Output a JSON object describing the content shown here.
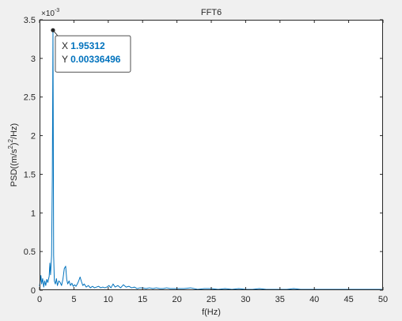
{
  "chart_data": {
    "type": "line",
    "title": "FFT6",
    "xlabel": "f(Hz)",
    "ylabel": "PSD((m/s²)²/Hz)",
    "ylabel_parts": {
      "prefix": "PSD((m/s",
      "sup1": "2",
      "mid": ")",
      "sup2": "2",
      "suffix": "/Hz)"
    },
    "y_exponent_prefix": "×10",
    "y_exponent": "-3",
    "xlim": [
      0,
      50
    ],
    "ylim": [
      0,
      0.0035
    ],
    "xticks": [
      0,
      5,
      10,
      15,
      20,
      25,
      30,
      35,
      40,
      45,
      50
    ],
    "xtick_labels": [
      "0",
      "5",
      "10",
      "15",
      "20",
      "25",
      "30",
      "35",
      "40",
      "45",
      "50"
    ],
    "yticks": [
      0,
      0.0005,
      0.001,
      0.0015,
      0.002,
      0.0025,
      0.003,
      0.0035
    ],
    "ytick_labels": [
      "0",
      "0.5",
      "1",
      "1.5",
      "2",
      "2.5",
      "3",
      "3.5"
    ],
    "grid": false,
    "box": true,
    "series": [
      {
        "color": "#0072BD",
        "x": [
          0.0,
          0.2,
          0.3,
          0.45,
          0.6,
          0.75,
          0.9,
          1.05,
          1.2,
          1.4,
          1.5,
          1.6,
          1.75,
          1.86,
          1.95312,
          2.05,
          2.15,
          2.3,
          2.45,
          2.6,
          2.8,
          3.0,
          3.2,
          3.4,
          3.6,
          3.8,
          3.95,
          4.1,
          4.3,
          4.5,
          4.7,
          4.9,
          5.1,
          5.3,
          5.5,
          5.7,
          5.9,
          6.1,
          6.3,
          6.5,
          6.8,
          7.1,
          7.4,
          7.7,
          8.0,
          8.3,
          8.6,
          8.9,
          9.2,
          9.5,
          9.8,
          10.1,
          10.4,
          10.7,
          11.0,
          11.4,
          11.8,
          12.2,
          12.6,
          13.0,
          13.4,
          13.8,
          14.2,
          14.6,
          15.0,
          15.5,
          16.0,
          16.5,
          17.0,
          17.5,
          18.0,
          18.5,
          19.0,
          20.0,
          21.0,
          22.0,
          23.0,
          24.0,
          25.0,
          26.0,
          27.0,
          28.0,
          29.0,
          30.0,
          31.0,
          32.0,
          33.0,
          34.0,
          35.0,
          36.0,
          37.0,
          38.0,
          39.0,
          40.0,
          41.0,
          42.0,
          43.0,
          44.0,
          45.0,
          46.0,
          47.0,
          48.0,
          49.0,
          50.0
        ],
        "y": [
          5e-05,
          0.00019,
          8e-05,
          0.00015,
          4e-05,
          0.00012,
          6e-05,
          0.00014,
          0.0001,
          0.00018,
          0.00035,
          0.0002,
          0.00045,
          0.00146,
          0.00336496,
          0.00045,
          0.00012,
          8e-05,
          0.00015,
          6e-05,
          0.00012,
          0.0001,
          6e-05,
          0.00014,
          0.00028,
          0.00031,
          0.00014,
          8e-05,
          0.00012,
          6e-05,
          9e-05,
          5e-05,
          7e-05,
          5e-05,
          8e-05,
          0.00012,
          0.00017,
          0.00011,
          6e-05,
          8e-05,
          4e-05,
          6e-05,
          3e-05,
          5e-05,
          3e-05,
          4e-05,
          5e-05,
          3e-05,
          4e-05,
          3e-05,
          4e-05,
          6e-05,
          3e-05,
          8e-05,
          4e-05,
          6e-05,
          3e-05,
          7e-05,
          4e-05,
          5e-05,
          3e-05,
          4e-05,
          2e-05,
          3e-05,
          3e-05,
          2e-05,
          3e-05,
          2e-05,
          3e-05,
          2e-05,
          2e-05,
          3e-05,
          2e-05,
          2e-05,
          2e-05,
          3e-05,
          1e-05,
          2e-05,
          2e-05,
          1e-05,
          2e-05,
          1e-05,
          2e-05,
          1e-05,
          1e-05,
          2e-05,
          1e-05,
          1e-05,
          1e-05,
          1e-05,
          2e-05,
          1e-05,
          1e-05,
          1e-05,
          1e-05,
          1e-05,
          1e-05,
          1e-05,
          1e-05,
          1e-05,
          1e-05,
          1e-05,
          1e-05,
          1e-05
        ]
      }
    ],
    "datatip": {
      "x": 1.95312,
      "y": 0.00336496,
      "x_label": "X",
      "y_label": "Y",
      "x_text": "1.95312",
      "y_text": "0.00336496",
      "value_color": "#0072BD"
    }
  }
}
